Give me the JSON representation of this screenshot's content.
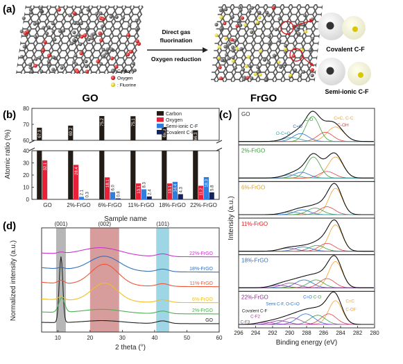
{
  "panels": {
    "a": {
      "label": "(a)",
      "left_caption": "GO",
      "right_caption": "FrGO",
      "arrow_top": "Direct gas\nfluorination",
      "arrow_bottom": "Oxygen reduction",
      "legend": [
        {
          "name": "Carbon",
          "color": "#555555"
        },
        {
          "name": "Oxygen",
          "color": "#d7191c"
        },
        {
          "name": "Fluorine",
          "color": "#e6e600"
        }
      ],
      "zoom_labels": [
        {
          "text": "Covalent C-F",
          "color": "#2e8b2e"
        },
        {
          "text": "Semi-ionic C-F",
          "color": "#7fbf5f"
        }
      ]
    },
    "b": {
      "label": "(b)",
      "chart_data": {
        "type": "bar",
        "categories": [
          "GO",
          "2%-FrGO",
          "6%-FrGO",
          "11%-FrGO",
          "18%-FrGO",
          "22%-FrGO"
        ],
        "series": [
          {
            "name": "Carbon",
            "color": "#231c16",
            "values": [
              67.9,
              69.2,
              75.2,
              75.1,
              68.3,
              66.3
            ]
          },
          {
            "name": "Oxygen",
            "color": "#e8203a",
            "values": [
              32.1,
              28.4,
              18.1,
              13.1,
              13.1,
              11.2
            ]
          },
          {
            "name": "Semi-ionic C-F",
            "color": "#2f7ddf",
            "values": [
              0,
              2.1,
              6.0,
              8.3,
              14.4,
              18.3
            ]
          },
          {
            "name": "Covalent C-F",
            "color": "#14245a",
            "values": [
              0,
              0.3,
              0.8,
              2.4,
              4.3,
              5.8
            ]
          }
        ],
        "data_labels": [
          [
            "67.9",
            "69.2",
            "75.2",
            "75.1",
            "68.3",
            "66.3"
          ],
          [
            "32.1",
            "28.4",
            "18.1",
            "13.1",
            "13.1",
            "11.2"
          ],
          [
            "",
            "2.1",
            "6.0",
            "8.3",
            "14.4",
            "18.3"
          ],
          [
            "",
            "0.3",
            "0.8",
            "2.4",
            "4.3",
            "5.8"
          ]
        ],
        "ylabel": "Atomic ratio (%)",
        "xlabel": "Sample name",
        "ylim_upper": [
          60,
          80
        ],
        "ylim_lower": [
          0,
          40
        ],
        "yticks_upper": [
          60,
          70,
          80
        ],
        "yticks_lower": [
          0,
          10,
          20,
          30,
          40
        ],
        "axis_break": true,
        "legend_placement": "top-right"
      }
    },
    "c": {
      "label": "(c)",
      "chart_data": {
        "type": "line",
        "xlabel": "Binding energy (eV)",
        "ylabel": "Intensity (a.u.)",
        "xlim": [
          296,
          280
        ],
        "xticks": [
          296,
          294,
          292,
          290,
          288,
          286,
          284,
          282,
          280
        ],
        "subpanels": [
          {
            "name": "GO",
            "color": "#333333"
          },
          {
            "name": "2%-FrGO",
            "color": "#2e9d2e"
          },
          {
            "name": "6%-FrGO",
            "color": "#e0a020"
          },
          {
            "name": "11%-FrGO",
            "color": "#d7191c"
          },
          {
            "name": "18%-FrGO",
            "color": "#2f6fbf"
          },
          {
            "name": "22%-FrGO",
            "color": "#a020a0"
          }
        ],
        "annotations_go": [
          "O-C=O",
          "C=O",
          "C-O",
          "C=C, C-C",
          "C-OH"
        ],
        "annotations_22": [
          "Semi C-F, O-C=O",
          "C=O",
          "C-O",
          "C=C",
          "C-OF",
          "Covalent C-F",
          "C-F2",
          "C-F3"
        ]
      }
    },
    "d": {
      "label": "(d)",
      "chart_data": {
        "type": "line",
        "xlabel": "2 theta (°)",
        "ylabel": "Normalized intensity (a.u.)",
        "xlim": [
          5,
          60
        ],
        "xticks": [
          10,
          20,
          30,
          40,
          50,
          60
        ],
        "bands": [
          {
            "label": "(001)",
            "range": [
              9.5,
              12.5
            ],
            "color": "#9e9e9e"
          },
          {
            "label": "(002)",
            "range": [
              20,
              29
            ],
            "color": "#c97b7b"
          },
          {
            "label": "(101)",
            "range": [
              40.5,
              44.5
            ],
            "color": "#7ec8dc"
          }
        ],
        "series": [
          {
            "name": "GO",
            "color": "#222222"
          },
          {
            "name": "2%-FrGO",
            "color": "#4caf50"
          },
          {
            "name": "6%-FrGO",
            "color": "#f0c020"
          },
          {
            "name": "11%-FrGO",
            "color": "#ee5533"
          },
          {
            "name": "18%-FrGO",
            "color": "#3070c0"
          },
          {
            "name": "22%-FrGO",
            "color": "#cc33cc"
          }
        ]
      }
    }
  }
}
